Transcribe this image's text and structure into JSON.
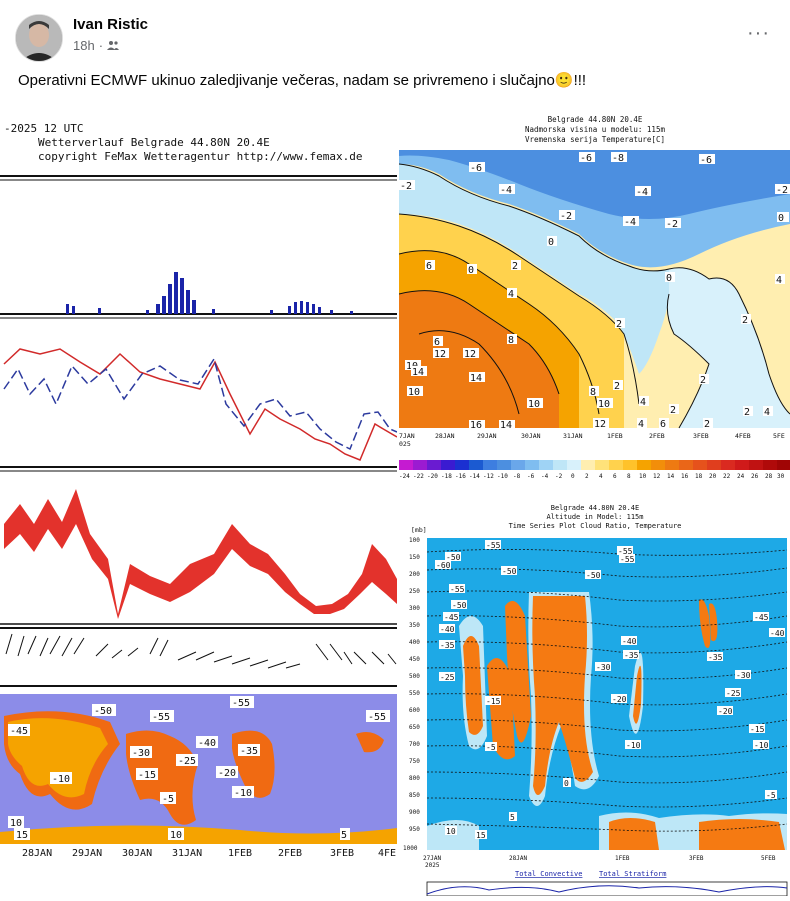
{
  "post": {
    "author": "Ivan Ristic",
    "time": "18h",
    "dot": "·",
    "audience_icon": "friends-icon",
    "more_label": "···",
    "text": "Operativni ECMWF ukinuo zaledjivanje večeras, nadam se privremeno i slučajno",
    "emoji": "🙂",
    "exclaim": "!!!"
  },
  "left_chart": {
    "header_line1": "-2025 12 UTC",
    "header_line2": "Wetterverlauf Belgrade  44.80N 20.4E",
    "header_line3": "copyright FeMax Wetteragentur http://www.femax.de",
    "dates": [
      "28JAN",
      "29JAN",
      "30JAN",
      "31JAN",
      "1FEB",
      "2FEB",
      "3FEB",
      "4FE"
    ],
    "contour_labels": [
      "-50",
      "-55",
      "-55",
      "-55",
      "-40",
      "-45",
      "-35",
      "-30",
      "-25",
      "-15",
      "-20",
      "-10",
      "-5",
      "-10",
      "10",
      "15",
      "10",
      "5"
    ]
  },
  "top_right_chart": {
    "title1": "Belgrade  44.80N 20.4E",
    "title2": "Nadmorska visina u modelu: 115m",
    "title3": "Vremenska serija Temperature[C]",
    "dates": [
      "7JAN",
      "28JAN",
      "29JAN",
      "30JAN",
      "31JAN",
      "1FEB",
      "2FEB",
      "3FEB",
      "4FEB",
      "5FE"
    ],
    "year": "025",
    "colorbar_ticks": [
      "-24",
      "-22",
      "-20",
      "-18",
      "-16",
      "-14",
      "-12",
      "-10",
      "-8",
      "-6",
      "-4",
      "-2",
      "0",
      "2",
      "4",
      "6",
      "8",
      "10",
      "12",
      "14",
      "16",
      "18",
      "20",
      "22",
      "24",
      "26",
      "28",
      "30"
    ],
    "contour_labels": [
      "-6",
      "-8",
      "-6",
      "-6",
      "-4",
      "-4",
      "-2",
      "-2",
      "0",
      "-4",
      "-2",
      "-2",
      "0",
      "0",
      "2",
      "0",
      "6",
      "2",
      "4",
      "4",
      "2",
      "8",
      "6",
      "2",
      "10",
      "12",
      "12",
      "14",
      "14",
      "8",
      "10",
      "10",
      "16",
      "14",
      "10",
      "12",
      "2",
      "4",
      "2",
      "2",
      "4",
      "4",
      "6",
      "2"
    ]
  },
  "bottom_right_chart": {
    "title1": "Belgrade  44.80N 20.4E",
    "title2": "Altitude in Model: 115m",
    "title3": "Time Series Plot Cloud Ratio, Temperature",
    "unit": "[mb]",
    "pressure_levels": [
      "100",
      "150",
      "200",
      "250",
      "300",
      "350",
      "400",
      "450",
      "500",
      "550",
      "600",
      "650",
      "700",
      "750",
      "800",
      "850",
      "900",
      "950",
      "1000"
    ],
    "dates": [
      "27JAN",
      "28JAN",
      "1FEB",
      "3FEB",
      "5FEB"
    ],
    "year": "2025",
    "legend": [
      "Total Convective",
      "Total Stratiform"
    ],
    "contour_labels": [
      "-55",
      "-50",
      "-55",
      "-60",
      "-50",
      "-55",
      "-50",
      "-45",
      "-40",
      "-40",
      "-35",
      "-35",
      "-30",
      "-25",
      "-20",
      "-15",
      "-10",
      "-5",
      "0",
      "5",
      "10",
      "15",
      "-55",
      "-50",
      "-45",
      "-40",
      "-35",
      "-30",
      "-25",
      "-20",
      "-15",
      "-10",
      "-5"
    ]
  },
  "colors": {
    "name": "#050505",
    "meta": "#65676b",
    "orange": "#f5a300",
    "cloud_blue": "#1ea9e6",
    "purple_bg": "#8c8ce8"
  }
}
